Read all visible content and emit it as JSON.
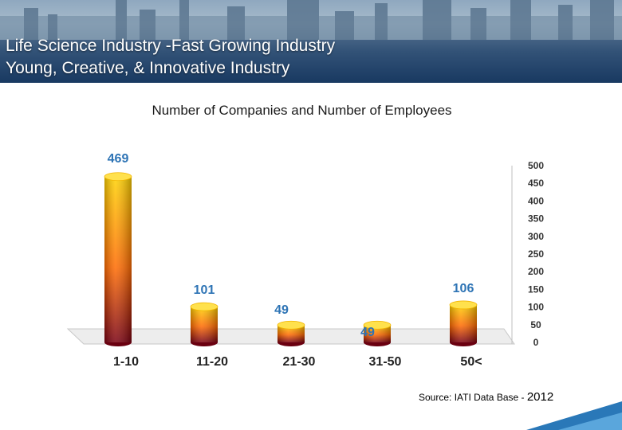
{
  "header": {
    "line1": "Life Science Industry -Fast Growing Industry",
    "line2": "Young, Creative, & Innovative Industry"
  },
  "chart_data": {
    "type": "bar",
    "title": "Number of Companies and Number of Employees",
    "categories": [
      "1-10",
      "11-20",
      "21-30",
      "31-50",
      "50<"
    ],
    "values": [
      469,
      101,
      49,
      49,
      106
    ],
    "data_labels": [
      "469",
      "101",
      "49",
      "49",
      "106"
    ],
    "ylim": [
      0,
      500
    ],
    "yticks": [
      "0",
      "50",
      "100",
      "150",
      "200",
      "250",
      "300",
      "350",
      "400",
      "450",
      "500"
    ],
    "xlabel": "",
    "ylabel": "",
    "y_axis_position": "right",
    "colors": {
      "label": "#2e74b5",
      "bar_top": "#ffd200",
      "bar_mid": "#ff6a00",
      "bar_bottom": "#7a0010"
    }
  },
  "source": {
    "text": "Source: IATI Data Base - ",
    "year": "2012"
  }
}
